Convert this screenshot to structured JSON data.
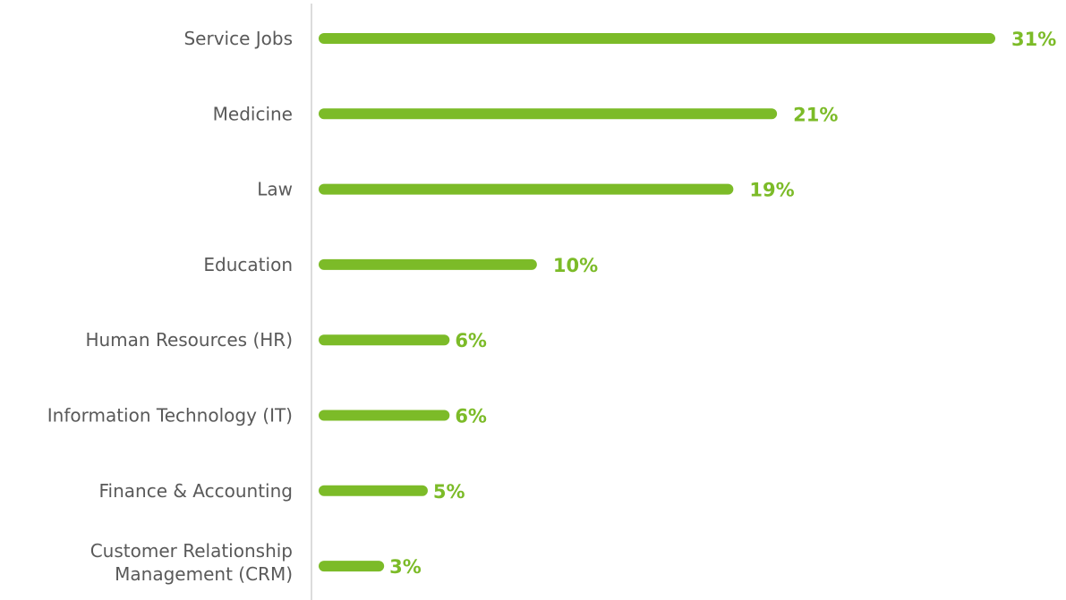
{
  "chart_data": {
    "type": "bar",
    "orientation": "horizontal",
    "categories": [
      "Service Jobs",
      "Medicine",
      "Law",
      "Education",
      "Human Resources (HR)",
      "Information Technology (IT)",
      "Finance & Accounting",
      "Customer Relationship Management (CRM)"
    ],
    "category_lines": [
      [
        "Service Jobs"
      ],
      [
        "Medicine"
      ],
      [
        "Law"
      ],
      [
        "Education"
      ],
      [
        "Human Resources (HR)"
      ],
      [
        "Information Technology (IT)"
      ],
      [
        "Finance & Accounting"
      ],
      [
        "Customer Relationship",
        "Management (CRM)"
      ]
    ],
    "values": [
      31,
      21,
      19,
      10,
      6,
      6,
      5,
      3
    ],
    "value_labels": [
      "31%",
      "21%",
      "19%",
      "10%",
      "6%",
      "6%",
      "5%",
      "3%"
    ],
    "unit": "%",
    "xlim": [
      0,
      31
    ],
    "grid": false,
    "legend": "none",
    "title": "",
    "xlabel": "",
    "ylabel": ""
  },
  "colors": {
    "bar": "#7cbb28",
    "value_label": "#7cbb28",
    "category_label": "#595959",
    "axis": "#d0d0d0"
  }
}
